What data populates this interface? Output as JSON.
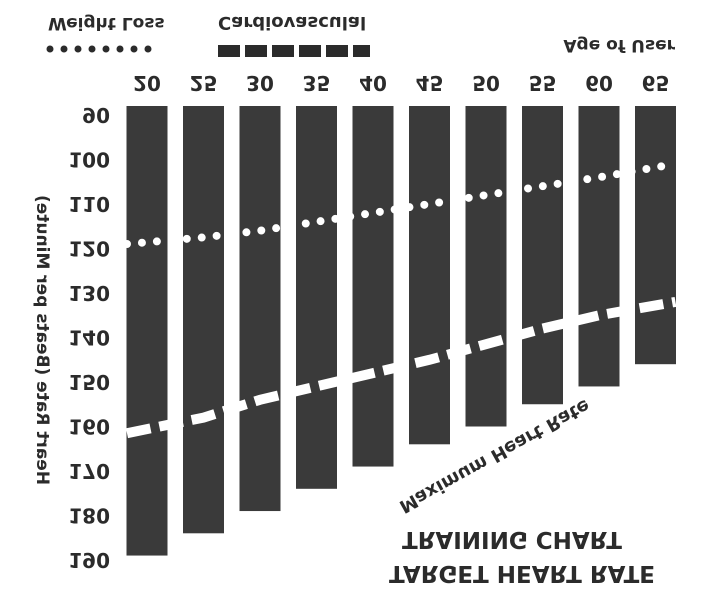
{
  "chart_data": {
    "type": "bar",
    "title": "TRAINING CHART",
    "subtitle": "TARGET HEART RATE",
    "xlabel": "Age of User",
    "ylabel": "Heart Rate (Beats per Minute)",
    "categories": [
      "20",
      "25",
      "30",
      "35",
      "40",
      "45",
      "50",
      "55",
      "60",
      "65"
    ],
    "y_ticks": [
      90,
      100,
      110,
      120,
      130,
      140,
      150,
      160,
      170,
      180,
      190
    ],
    "ylim": [
      90,
      190
    ],
    "y_inverted": true,
    "bar_color": "#3a3a3a",
    "line_color": "#ffffff",
    "series": [
      {
        "name": "Maximum Heart Rate",
        "kind": "bars",
        "values": [
          189,
          184,
          179,
          174,
          169,
          164,
          160,
          155,
          151,
          146
        ]
      },
      {
        "name": "Weight Loss",
        "kind": "dotted-line",
        "values": [
          119,
          117.5,
          116,
          114,
          112,
          110,
          108,
          106,
          104,
          101
        ]
      },
      {
        "name": "Cardiovascular",
        "kind": "dashed-line",
        "values": [
          161.5,
          158,
          154,
          151,
          148,
          145,
          141.5,
          138,
          135,
          132
        ]
      }
    ],
    "legend": {
      "weight_loss": "Weight Loss",
      "cardio": "Cardiovasculal"
    },
    "annotation": "Maximum Heart Rate",
    "mirrored": true,
    "grid": false
  }
}
